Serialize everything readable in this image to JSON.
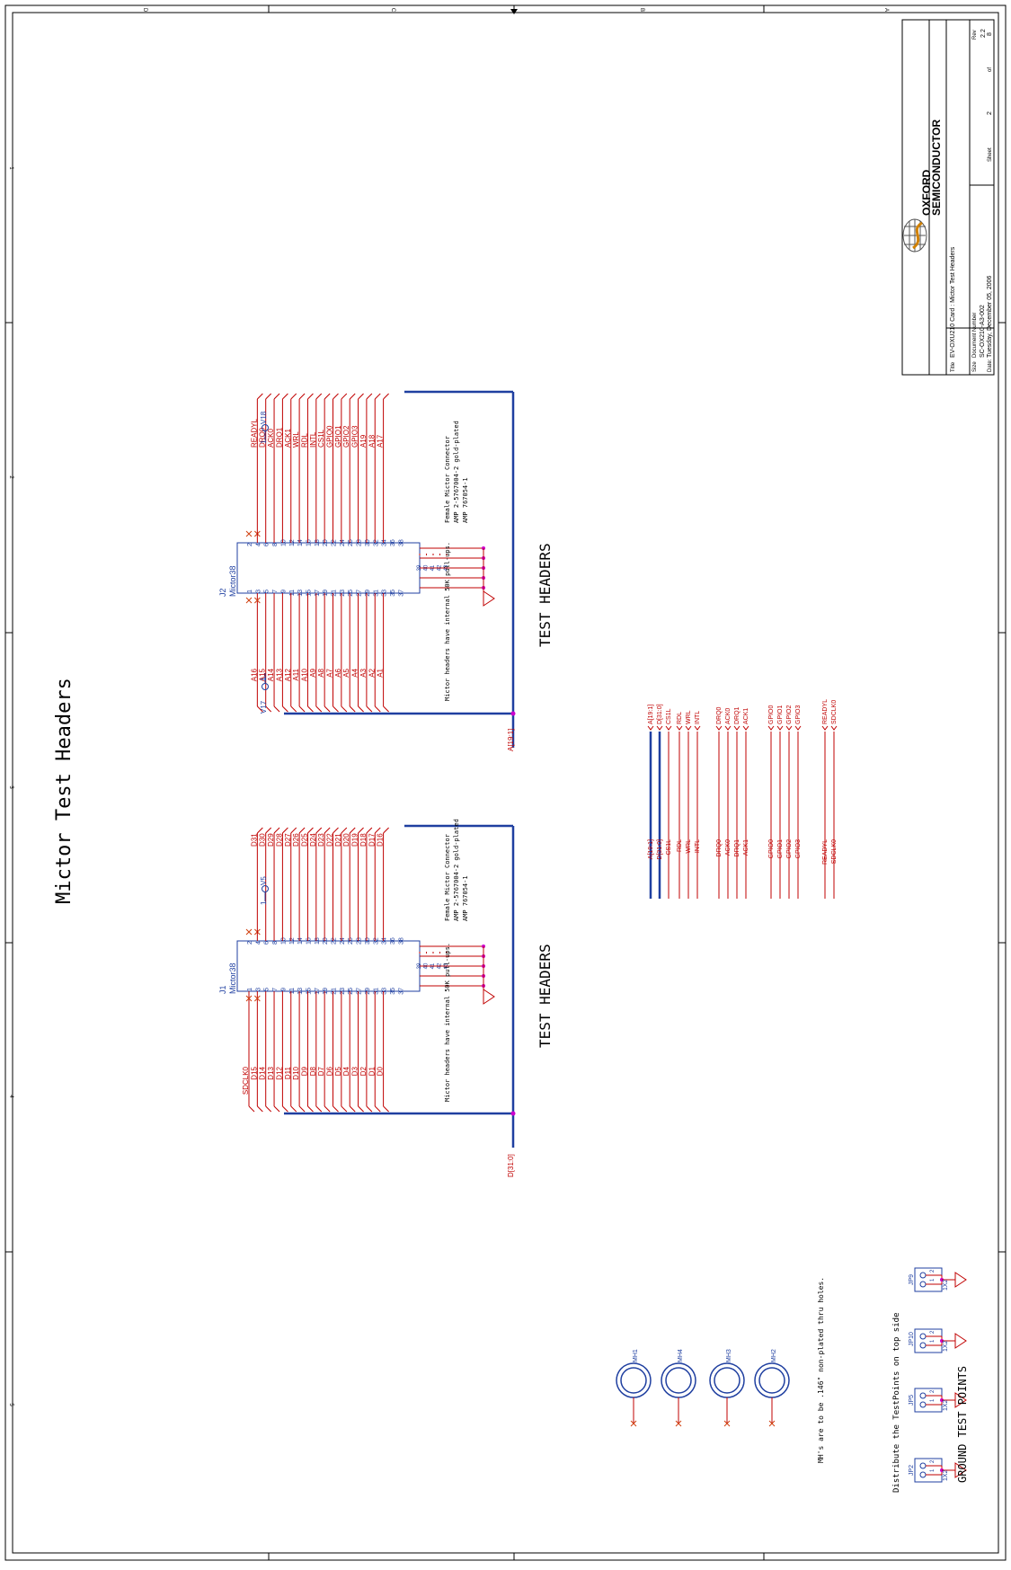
{
  "page_title": "Mictor Test Headers",
  "border": {
    "zones_top": [
      "D",
      "C",
      "B",
      "A"
    ],
    "zones_left": [
      "1",
      "2",
      "3",
      "4",
      "5"
    ]
  },
  "title_block": {
    "company_line1": "OXFORD",
    "company_line2": "SEMICONDUCTOR",
    "title_label": "Title",
    "title_value": "EV-OXU210 Card : Mictor Test Headers",
    "size_label": "Size",
    "docnum_label": "Document Number",
    "docnum_value": "SC-OX210-A3-002",
    "rev_label": "Rev",
    "rev_value": "2.2",
    "date_label": "Date:",
    "date_value": "Tuesday, December 05, 2006",
    "sheet_label": "Sheet",
    "sheet_value": "2",
    "of_label": "of",
    "total_sheets": "8"
  },
  "j2": {
    "ref": "J2",
    "part": "Mictor38",
    "odd_pins": [
      "1",
      "3",
      "5",
      "7",
      "9",
      "11",
      "13",
      "15",
      "17",
      "19",
      "21",
      "23",
      "25",
      "27",
      "29",
      "31",
      "33",
      "35",
      "37"
    ],
    "even_pins": [
      "2",
      "4",
      "6",
      "8",
      "10",
      "12",
      "14",
      "16",
      "18",
      "20",
      "22",
      "24",
      "26",
      "28",
      "30",
      "32",
      "34",
      "36",
      "38"
    ],
    "gnd_pins": [
      "39",
      "40",
      "41",
      "42",
      "43"
    ],
    "left_nets": [
      "A16",
      "A15",
      "A14",
      "A13",
      "A12",
      "A11",
      "A10",
      "A9",
      "A8",
      "A7",
      "A6",
      "A5",
      "A4",
      "A3",
      "A2",
      "A1"
    ],
    "right_nets": [
      "READYL",
      "DRQ0",
      "ACK0",
      "DRQ1",
      "ACK1",
      "WRL",
      "RDL",
      "INTL",
      "CS1L",
      "GPIO0",
      "GPIO1",
      "GPIO2",
      "GPIO3",
      "A19",
      "A18",
      "A17"
    ],
    "left_power": "V17",
    "right_power": "V18",
    "pin_one": "1",
    "bus_label": "A[19:1]"
  },
  "j1": {
    "ref": "J1",
    "part": "Mictor38",
    "odd_pins": [
      "1",
      "3",
      "5",
      "7",
      "9",
      "11",
      "13",
      "15",
      "17",
      "19",
      "21",
      "23",
      "25",
      "27",
      "29",
      "31",
      "33",
      "35",
      "37"
    ],
    "even_pins": [
      "2",
      "4",
      "6",
      "8",
      "10",
      "12",
      "14",
      "16",
      "18",
      "20",
      "22",
      "24",
      "26",
      "28",
      "30",
      "32",
      "34",
      "36",
      "38"
    ],
    "gnd_pins": [
      "39",
      "40",
      "41",
      "42",
      "43"
    ],
    "left_nets": [
      "SDCLK0",
      "D15",
      "D14",
      "D13",
      "D12",
      "D11",
      "D10",
      "D9",
      "D8",
      "D7",
      "D6",
      "D5",
      "D4",
      "D3",
      "D2",
      "D1",
      "D0"
    ],
    "right_nets": [
      "D31",
      "D30",
      "D29",
      "D28",
      "D27",
      "D26",
      "D25",
      "D24",
      "D23",
      "D22",
      "D21",
      "D20",
      "D19",
      "D18",
      "D17",
      "D16"
    ],
    "right_power": "V5",
    "pin_one": "1",
    "bus_label": "D[31:0]"
  },
  "notes": {
    "pullups": "Mictor headers have internal 50K pull-ups.",
    "connector_title": "Female Mictor Connector",
    "connector_part1": "AMP 2-5767004-2 gold-plated",
    "connector_part2": "AMP 767054-1",
    "section_title": "TEST HEADERS",
    "mh_note": "MH's are to be .146\" non-plated thru holes.",
    "distribute_note": "Distribute the TestPoints on top side",
    "ground_title": "GROUND TEST POINTS"
  },
  "net_list": {
    "top": [
      "A[19:1]",
      "D[31:0]",
      "CS1L",
      "RDL",
      "WRL",
      "INTL",
      "DRQ0",
      "ACK0",
      "DRQ1",
      "ACK1",
      "GPIO0",
      "GPIO1",
      "GPIO2",
      "GPIO3",
      "READYL",
      "SDCLK0"
    ],
    "bottom": [
      "A[19:1]",
      "D[31:0]",
      "CS1L",
      "RDL",
      "WRL",
      "INTL",
      "DRQ0",
      "ACK0",
      "DRQ1",
      "ACK1",
      "GPIO0",
      "GPIO1",
      "GPIO2",
      "GPIO3",
      "READYL",
      "SDCLK0"
    ]
  },
  "mounting_holes": [
    "MH1",
    "MH4",
    "MH3",
    "MH2"
  ],
  "ground_points": [
    {
      "ref": "JP2",
      "type": "1X2"
    },
    {
      "ref": "JP5",
      "type": "1X2"
    },
    {
      "ref": "JP10",
      "type": "1X2"
    },
    {
      "ref": "JP9",
      "type": "1X2"
    }
  ],
  "pin_labels": {
    "p1": "1",
    "p2": "2"
  },
  "colors": {
    "wire": "#c00000",
    "component": "#1f3fa0",
    "junction": "#cc00cc",
    "border": "#000000"
  }
}
